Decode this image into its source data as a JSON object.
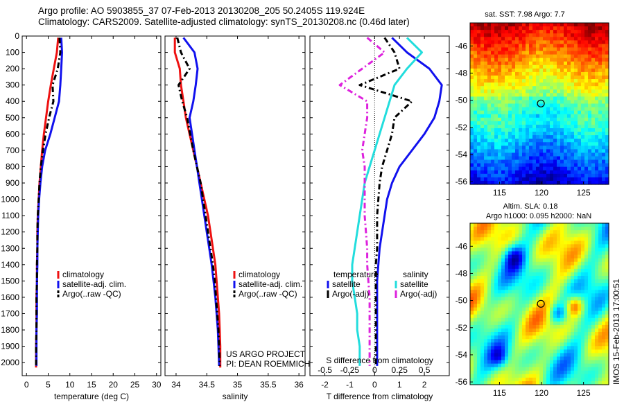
{
  "header": {
    "line1": "Argo profile: AO 5903855_37 07-Feb-2013 20130208_205 50.2405S 119.924E",
    "line2": "Climatology: CARS2009. Satellite-adjusted climatology: synTS_20130208.nc (0.46d later)"
  },
  "credit": {
    "line1": "US ARGO PROJECT",
    "line2": "PI: DEAN ROEMMICH"
  },
  "stamp": "IMOS 15-Feb-2013 17:00:51",
  "colors": {
    "climatology": "#ee1111",
    "satellite": "#1111ee",
    "argo": "#000000",
    "sat_salinity": "#22dddd",
    "argo_salinity": "#dd22dd"
  },
  "chart_data": [
    {
      "type": "line",
      "xlabel": "temperature (deg C)",
      "ylabel": "",
      "xlim": [
        -1,
        31
      ],
      "ylim": [
        2080,
        0
      ],
      "xticks": [
        0,
        5,
        10,
        15,
        20,
        25,
        30
      ],
      "yticks": [
        0,
        100,
        200,
        300,
        400,
        500,
        600,
        700,
        800,
        900,
        1000,
        1100,
        1200,
        1300,
        1400,
        1500,
        1600,
        1700,
        1800,
        1900,
        2000
      ],
      "legend": [
        "climatology",
        "satellite-adj. clim.",
        "Argo(..raw -QC)"
      ],
      "series": [
        {
          "name": "climatology",
          "color": "#ee1111",
          "dash": "",
          "x": [
            7.3,
            7.0,
            6.3,
            5.6,
            5.0,
            4.5,
            4.0,
            3.6,
            3.3,
            3.0,
            2.8,
            2.6,
            2.5,
            2.5,
            2.4,
            2.4,
            2.3,
            2.3,
            2.3,
            2.2,
            2.2
          ],
          "y": [
            10,
            100,
            200,
            300,
            400,
            500,
            600,
            700,
            800,
            900,
            1000,
            1100,
            1200,
            1300,
            1400,
            1500,
            1600,
            1700,
            1800,
            1900,
            2030
          ]
        },
        {
          "name": "satellite-adj. clim.",
          "color": "#1111ee",
          "dash": "",
          "x": [
            8.0,
            8.2,
            8.0,
            7.8,
            7.5,
            6.5,
            5.5,
            4.3,
            3.6,
            3.2,
            2.9,
            2.7,
            2.6,
            2.5,
            2.5,
            2.4,
            2.4,
            2.4,
            2.3,
            2.3,
            2.3
          ],
          "y": [
            10,
            100,
            200,
            300,
            400,
            500,
            600,
            700,
            800,
            900,
            1000,
            1100,
            1200,
            1300,
            1400,
            1500,
            1600,
            1700,
            1800,
            1900,
            2020
          ]
        },
        {
          "name": "Argo(..raw -QC)",
          "color": "#000000",
          "dash": "8,4,2,4",
          "x": [
            7.6,
            7.8,
            7.2,
            6.0,
            6.2,
            5.2,
            4.4,
            3.8,
            3.3,
            3.0,
            2.8,
            2.6,
            2.5,
            2.5,
            2.4,
            2.4,
            2.3,
            2.3,
            2.3,
            2.2,
            2.2
          ],
          "y": [
            10,
            100,
            200,
            300,
            400,
            500,
            600,
            700,
            800,
            900,
            1000,
            1100,
            1200,
            1300,
            1400,
            1500,
            1600,
            1700,
            1800,
            1900,
            2020
          ]
        }
      ]
    },
    {
      "type": "line",
      "xlabel": "salinity",
      "ylabel": "",
      "xlim": [
        33.82,
        36.1
      ],
      "ylim": [
        2080,
        0
      ],
      "xticks": [
        34,
        34.5,
        35,
        35.5,
        36
      ],
      "yticks": [],
      "legend": [
        "climatology",
        "satellite-adj. clim.",
        "Argo(..raw -QC)"
      ],
      "series": [
        {
          "name": "climatology",
          "color": "#ee1111",
          "dash": "",
          "x": [
            33.98,
            33.98,
            34.06,
            34.08,
            34.12,
            34.16,
            34.22,
            34.28,
            34.34,
            34.4,
            34.46,
            34.52,
            34.56,
            34.6,
            34.64,
            34.66,
            34.68,
            34.7,
            34.71,
            34.72,
            34.72
          ],
          "y": [
            10,
            100,
            200,
            300,
            400,
            500,
            600,
            700,
            800,
            900,
            1000,
            1100,
            1200,
            1300,
            1400,
            1500,
            1600,
            1700,
            1800,
            1900,
            2030
          ]
        },
        {
          "name": "satellite-adj. clim.",
          "color": "#1111ee",
          "dash": "",
          "x": [
            34.12,
            34.3,
            34.35,
            34.32,
            34.28,
            34.22,
            34.26,
            34.3,
            34.34,
            34.38,
            34.42,
            34.46,
            34.5,
            34.54,
            34.58,
            34.61,
            34.64,
            34.66,
            34.68,
            34.69,
            34.7
          ],
          "y": [
            10,
            100,
            200,
            300,
            400,
            500,
            600,
            700,
            800,
            900,
            1000,
            1100,
            1200,
            1300,
            1400,
            1500,
            1600,
            1700,
            1800,
            1900,
            2020
          ]
        },
        {
          "name": "Argo(..raw -QC)",
          "color": "#000000",
          "dash": "8,4,2,4",
          "x": [
            34.02,
            34.08,
            34.22,
            34.04,
            34.1,
            34.18,
            34.23,
            34.28,
            34.34,
            34.4,
            34.44,
            34.48,
            34.52,
            34.56,
            34.6,
            34.63,
            34.65,
            34.67,
            34.69,
            34.7,
            34.71
          ],
          "y": [
            10,
            100,
            200,
            300,
            400,
            500,
            600,
            700,
            800,
            900,
            1000,
            1100,
            1200,
            1300,
            1400,
            1500,
            1600,
            1700,
            1800,
            1900,
            2020
          ]
        }
      ]
    },
    {
      "type": "line",
      "xlabel": "T difference from climatology",
      "xlabel_top": "S difference from climatology",
      "xlim": [
        -2.6,
        3.0
      ],
      "ylim": [
        2080,
        0
      ],
      "xticks": [
        -2,
        -1,
        0,
        1,
        2
      ],
      "xticks_top": [
        -0.5,
        -0.25,
        0,
        0.25,
        0.5
      ],
      "yticks": [],
      "legend_left_title": "temperature",
      "legend_right_title": "salinity",
      "legend": [
        "satellite",
        "Argo(-adj)",
        "satellite",
        "Argo(-adj)"
      ],
      "series": [
        {
          "name": "satellite",
          "quantity": "temperature",
          "color": "#1111ee",
          "dash": "",
          "x": [
            0.7,
            1.3,
            2.2,
            2.7,
            2.6,
            2.4,
            2.0,
            1.5,
            1.0,
            0.7,
            0.5,
            0.4,
            0.3,
            0.2,
            0.15,
            0.1,
            0.1,
            0.1,
            0.1,
            0.1,
            0.1
          ],
          "y": [
            10,
            100,
            200,
            300,
            400,
            500,
            600,
            700,
            800,
            900,
            1000,
            1100,
            1200,
            1300,
            1400,
            1500,
            1600,
            1700,
            1800,
            1900,
            2020
          ]
        },
        {
          "name": "Argo(-adj)",
          "quantity": "temperature",
          "color": "#000000",
          "dash": "8,4,2,4",
          "x": [
            0.4,
            0.8,
            1.0,
            -0.6,
            1.5,
            0.8,
            0.7,
            0.5,
            0.3,
            0.2,
            0.15,
            0.1,
            0.1,
            0.1,
            0.05,
            0.05,
            0.05,
            0.05,
            0.05,
            0.05,
            0.05
          ],
          "y": [
            10,
            100,
            200,
            300,
            400,
            500,
            600,
            700,
            800,
            900,
            1000,
            1100,
            1200,
            1300,
            1400,
            1500,
            1600,
            1700,
            1800,
            1900,
            2020
          ]
        },
        {
          "name": "satellite",
          "quantity": "salinity",
          "color": "#22dddd",
          "dash": "",
          "x": [
            1.3,
            1.9,
            1.3,
            0.8,
            0.6,
            0.4,
            0.2,
            0.0,
            -0.2,
            -0.4,
            -0.5,
            -0.6,
            -0.7,
            -0.8,
            -0.9,
            -0.9,
            -0.8,
            -0.7,
            -0.7,
            -0.6,
            -0.6
          ],
          "y": [
            10,
            100,
            200,
            300,
            400,
            500,
            600,
            700,
            800,
            900,
            1000,
            1100,
            1200,
            1300,
            1400,
            1500,
            1600,
            1700,
            1800,
            1900,
            2020
          ]
        },
        {
          "name": "Argo(-adj)",
          "quantity": "salinity",
          "color": "#dd22dd",
          "dash": "8,4,2,4",
          "x": [
            -0.3,
            0.4,
            -0.5,
            -1.4,
            -0.3,
            -0.3,
            -0.4,
            -0.5,
            -0.4,
            -0.4,
            -0.4,
            -0.4,
            -0.35,
            -0.3,
            -0.3,
            -0.25,
            -0.2,
            -0.2,
            -0.2,
            -0.2,
            -0.2
          ],
          "y": [
            10,
            100,
            200,
            300,
            400,
            500,
            600,
            700,
            800,
            900,
            1000,
            1100,
            1200,
            1300,
            1400,
            1500,
            1600,
            1700,
            1800,
            1900,
            2020
          ]
        }
      ]
    },
    {
      "type": "heatmap",
      "title": "sat. SST: 7.98 Argo: 7.7",
      "xticks": [
        115,
        120,
        125
      ],
      "yticks": [
        -46,
        -48,
        -50,
        -52,
        -54,
        -56
      ],
      "xlim": [
        111.5,
        128
      ],
      "ylim": [
        -56.2,
        -44.3
      ],
      "marker": {
        "lon": 119.924,
        "lat": -50.2405
      },
      "colormap": "jet"
    },
    {
      "type": "heatmap",
      "title_line1": "Altim. SLA: 0.18",
      "title_line2": "Argo h1000: 0.095 h2000: NaN",
      "xticks": [
        115,
        120,
        125
      ],
      "yticks": [
        -46,
        -48,
        -50,
        -52,
        -54,
        -56
      ],
      "xlim": [
        111.5,
        128
      ],
      "ylim": [
        -56.2,
        -44.3
      ],
      "marker": {
        "lon": 119.924,
        "lat": -50.2405
      },
      "colormap": "jet"
    }
  ]
}
